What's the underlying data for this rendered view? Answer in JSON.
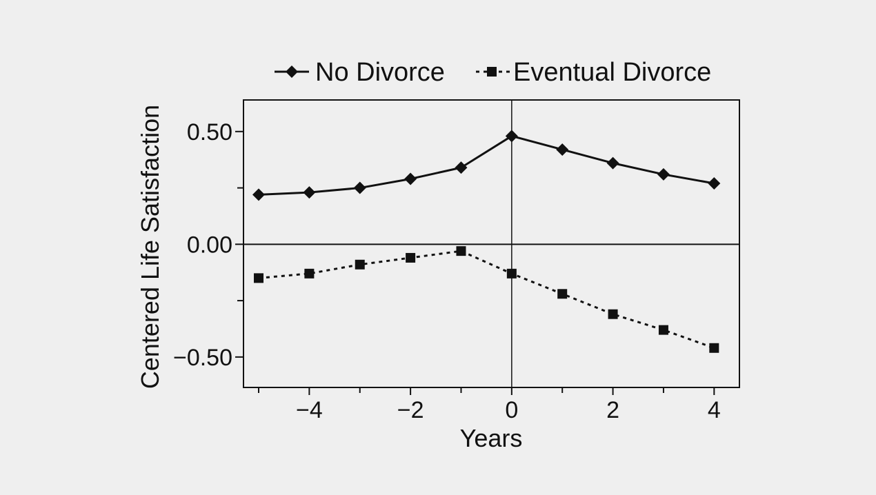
{
  "chart_data": {
    "type": "line",
    "title": "",
    "xlabel": "Years",
    "ylabel": "Centered Life Satisfaction",
    "xlim": [
      -5.3,
      4.5
    ],
    "ylim": [
      -0.635,
      0.64
    ],
    "x_ticks": [
      -4,
      -2,
      0,
      2,
      4
    ],
    "x_tick_labels": [
      "−4",
      "−2",
      "0",
      "2",
      "4"
    ],
    "x_minor_ticks": [
      -5,
      -3,
      -1,
      1,
      3
    ],
    "y_ticks": [
      0.5,
      0.0,
      -0.5
    ],
    "y_tick_labels": [
      "0.50",
      "0.00",
      "−0.50"
    ],
    "y_minor_ticks": [
      0.25,
      -0.25
    ],
    "grid": false,
    "reference_lines": {
      "x": 0,
      "y": 0
    },
    "legend_position": "top",
    "series": [
      {
        "name": "No Divorce",
        "marker": "diamond",
        "line_style": "solid",
        "color": "#111111",
        "x": [
          -5,
          -4,
          -3,
          -2,
          -1,
          0,
          1,
          2,
          3,
          4
        ],
        "values": [
          0.22,
          0.23,
          0.25,
          0.29,
          0.34,
          0.48,
          0.42,
          0.36,
          0.31,
          0.27
        ]
      },
      {
        "name": "Eventual Divorce",
        "marker": "square",
        "line_style": "dotted",
        "color": "#111111",
        "x": [
          -5,
          -4,
          -3,
          -2,
          -1,
          0,
          1,
          2,
          3,
          4
        ],
        "values": [
          -0.15,
          -0.13,
          -0.09,
          -0.06,
          -0.03,
          -0.13,
          -0.22,
          -0.31,
          -0.38,
          -0.46
        ]
      }
    ]
  }
}
